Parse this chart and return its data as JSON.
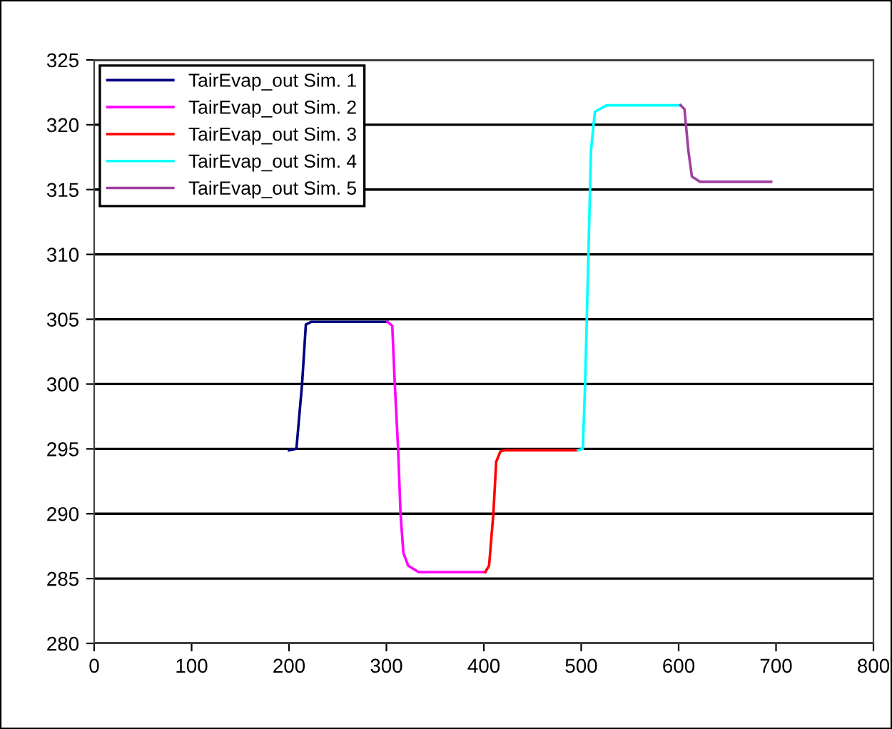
{
  "chart_data": {
    "type": "line",
    "xlim": [
      0,
      800
    ],
    "xticks": [
      0,
      100,
      200,
      300,
      400,
      500,
      600,
      700,
      800
    ],
    "ylim": [
      280,
      325
    ],
    "yticks": [
      280,
      285,
      290,
      295,
      300,
      305,
      310,
      315,
      320,
      325
    ],
    "grid": "y",
    "legend": "top left",
    "marker": "none",
    "line_style": "solid",
    "series": [
      {
        "name": "TairEvap_out Sim. 1",
        "color": "#000080",
        "x": [
          200,
          207.6,
          213.4,
          217.3,
          223,
          301
        ],
        "values": [
          294.9,
          295,
          300,
          304.6,
          304.8,
          304.8
        ]
      },
      {
        "name": "TairEvap_out Sim. 2",
        "color": "#ff00ff",
        "x": [
          301,
          306,
          308.6,
          312,
          314.5,
          317.4,
          322.3,
          333,
          401.5
        ],
        "values": [
          304.8,
          304.5,
          300,
          295,
          290,
          287,
          286,
          285.5,
          285.5
        ]
      },
      {
        "name": "TairEvap_out Sim. 3",
        "color": "#ff0000",
        "x": [
          401.5,
          405.4,
          409.8,
          412.7,
          417,
          421,
          496.7
        ],
        "values": [
          285.5,
          286,
          290,
          294,
          294.8,
          294.9,
          294.9
        ]
      },
      {
        "name": "TairEvap_out Sim. 4",
        "color": "#00ffff",
        "x": [
          496.7,
          501.6,
          504,
          507.4,
          510,
          514,
          526,
          602
        ],
        "values": [
          294.9,
          295,
          300,
          310,
          318,
          321,
          321.5,
          321.5
        ]
      },
      {
        "name": "TairEvap_out Sim. 5",
        "color": "#a040a0",
        "x": [
          602,
          606,
          610,
          613.6,
          622,
          695
        ],
        "values": [
          321.5,
          321.2,
          318,
          316,
          315.6,
          315.6
        ]
      }
    ]
  }
}
